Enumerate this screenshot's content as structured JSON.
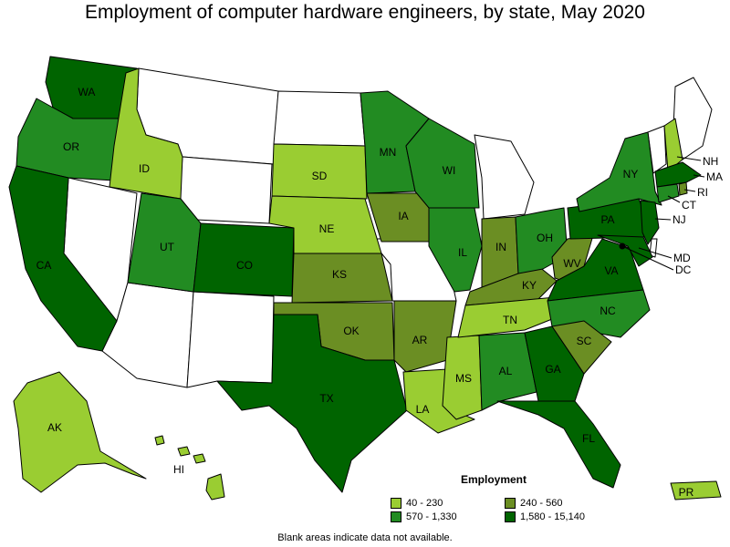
{
  "title": "Employment of computer hardware engineers, by state, May 2020",
  "note": "Blank areas indicate data not available.",
  "legend": {
    "title": "Employment",
    "items": [
      {
        "label": "40 - 230",
        "color": "#9acd32"
      },
      {
        "label": "240 - 560",
        "color": "#6b8e23"
      },
      {
        "label": "570 - 1,330",
        "color": "#228b22"
      },
      {
        "label": "1,580 - 15,140",
        "color": "#006400"
      }
    ]
  },
  "colors": {
    "nodata": "#ffffff",
    "c1": "#9acd32",
    "c2": "#6b8e23",
    "c3": "#228b22",
    "c4": "#006400"
  },
  "states": {
    "WA": "WA",
    "OR": "OR",
    "CA": "CA",
    "ID": "ID",
    "UT": "UT",
    "CO": "CO",
    "SD": "SD",
    "NE": "NE",
    "KS": "KS",
    "OK": "OK",
    "TX": "TX",
    "MN": "MN",
    "IA": "IA",
    "AR": "AR",
    "LA": "LA",
    "WI": "WI",
    "IL": "IL",
    "MS": "MS",
    "AL": "AL",
    "GA": "GA",
    "FL": "FL",
    "IN": "IN",
    "KY": "KY",
    "TN": "TN",
    "OH": "OH",
    "WV": "WV",
    "VA": "VA",
    "NC": "NC",
    "SC": "SC",
    "PA": "PA",
    "NY": "NY",
    "AK": "AK",
    "HI": "HI",
    "PR": "PR",
    "NH": "NH",
    "MA": "MA",
    "CT": "CT",
    "RI": "RI",
    "NJ": "NJ",
    "MD": "MD",
    "DC": "DC"
  }
}
